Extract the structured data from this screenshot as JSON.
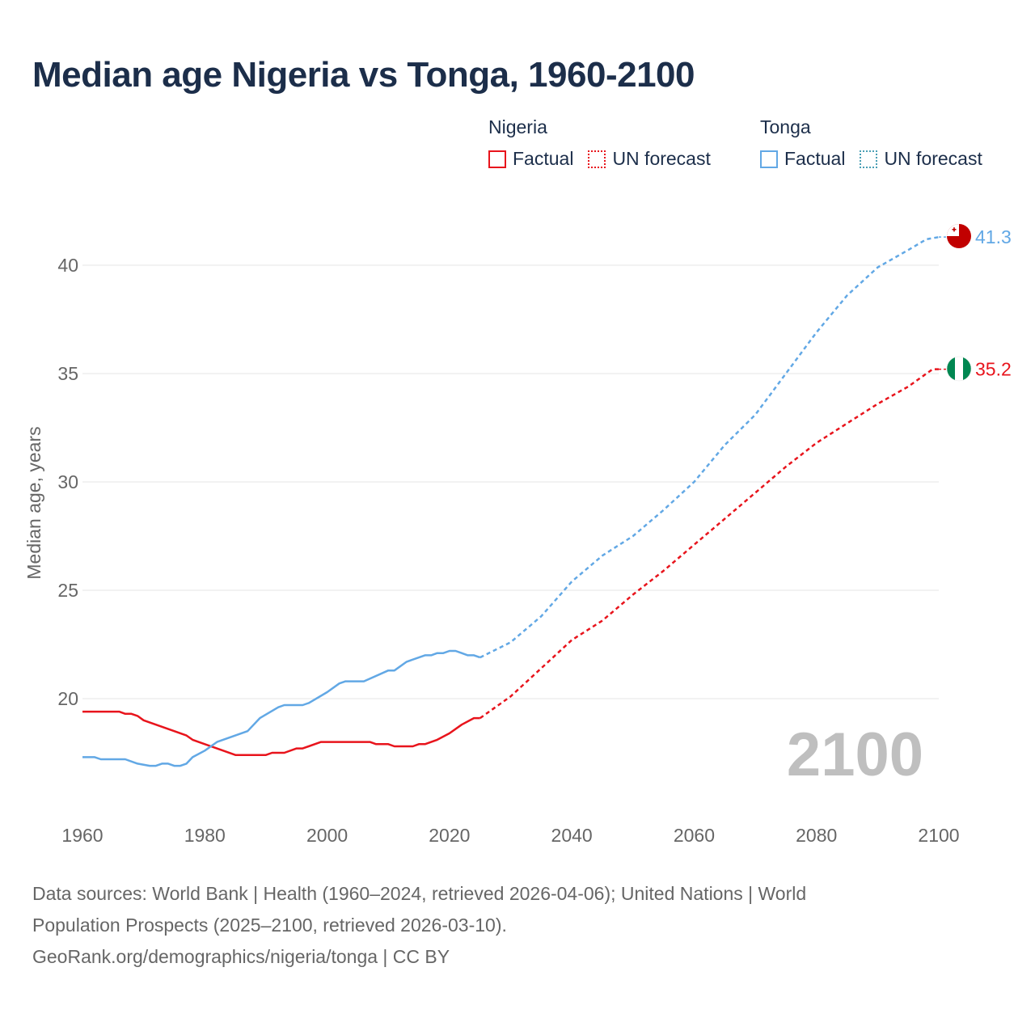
{
  "title": "Median age Nigeria vs Tonga, 1960-2100",
  "legend": {
    "groups": [
      {
        "name": "Nigeria",
        "factual": "Factual",
        "forecast": "UN forecast",
        "color": "#e8141c"
      },
      {
        "name": "Tonga",
        "factual": "Factual",
        "forecast": "UN forecast",
        "color": "#62a8e5",
        "forecast_color": "#4a9fb5"
      }
    ]
  },
  "year_label": "2100",
  "footer": {
    "line1": "Data sources: World Bank | Health (1960–2024, retrieved 2026-04-06); United Nations | World",
    "line2": "Population Prospects (2025–2100, retrieved 2026-03-10).",
    "line3": "GeoRank.org/demographics/nigeria/tonga | CC BY"
  },
  "chart_data": {
    "type": "line",
    "title": "Median age Nigeria vs Tonga, 1960-2100",
    "xlabel": "",
    "ylabel": "Median age, years",
    "xlim": [
      1960,
      2100
    ],
    "ylim": [
      16.5,
      43.5
    ],
    "yticks": [
      20,
      25,
      30,
      35,
      40
    ],
    "xticks": [
      1960,
      1980,
      2000,
      2020,
      2040,
      2060,
      2080,
      2100
    ],
    "grid": true,
    "forecast_start": 2025,
    "series": [
      {
        "name": "Nigeria",
        "color": "#e8141c",
        "end_label": "35.2",
        "points": [
          [
            1960,
            19.4
          ],
          [
            1966,
            19.4
          ],
          [
            1967,
            19.3
          ],
          [
            1968,
            19.3
          ],
          [
            1969,
            19.2
          ],
          [
            1970,
            19.0
          ],
          [
            1975,
            18.5
          ],
          [
            1977,
            18.3
          ],
          [
            1978,
            18.1
          ],
          [
            1980,
            17.9
          ],
          [
            1983,
            17.6
          ],
          [
            1985,
            17.4
          ],
          [
            1990,
            17.4
          ],
          [
            1991,
            17.5
          ],
          [
            1993,
            17.5
          ],
          [
            1995,
            17.7
          ],
          [
            1996,
            17.7
          ],
          [
            1999,
            18.0
          ],
          [
            2007,
            18.0
          ],
          [
            2008,
            17.9
          ],
          [
            2010,
            17.9
          ],
          [
            2011,
            17.8
          ],
          [
            2014,
            17.8
          ],
          [
            2015,
            17.9
          ],
          [
            2016,
            17.9
          ],
          [
            2018,
            18.1
          ],
          [
            2020,
            18.4
          ],
          [
            2022,
            18.8
          ],
          [
            2024,
            19.1
          ],
          [
            2025,
            19.1
          ],
          [
            2030,
            20.1
          ],
          [
            2035,
            21.4
          ],
          [
            2040,
            22.7
          ],
          [
            2045,
            23.6
          ],
          [
            2050,
            24.8
          ],
          [
            2055,
            25.9
          ],
          [
            2060,
            27.1
          ],
          [
            2065,
            28.3
          ],
          [
            2070,
            29.5
          ],
          [
            2075,
            30.7
          ],
          [
            2080,
            31.8
          ],
          [
            2085,
            32.7
          ],
          [
            2090,
            33.6
          ],
          [
            2095,
            34.4
          ],
          [
            2099,
            35.2
          ],
          [
            2100,
            35.2
          ]
        ]
      },
      {
        "name": "Tonga",
        "color": "#62a8e5",
        "end_label": "41.3",
        "points": [
          [
            1960,
            17.3
          ],
          [
            1962,
            17.3
          ],
          [
            1963,
            17.2
          ],
          [
            1967,
            17.2
          ],
          [
            1969,
            17.0
          ],
          [
            1971,
            16.9
          ],
          [
            1972,
            16.9
          ],
          [
            1973,
            17.0
          ],
          [
            1974,
            17.0
          ],
          [
            1975,
            16.9
          ],
          [
            1976,
            16.9
          ],
          [
            1977,
            17.0
          ],
          [
            1978,
            17.3
          ],
          [
            1980,
            17.6
          ],
          [
            1982,
            18.0
          ],
          [
            1987,
            18.5
          ],
          [
            1989,
            19.1
          ],
          [
            1992,
            19.6
          ],
          [
            1993,
            19.7
          ],
          [
            1996,
            19.7
          ],
          [
            1997,
            19.8
          ],
          [
            2000,
            20.3
          ],
          [
            2002,
            20.7
          ],
          [
            2003,
            20.8
          ],
          [
            2006,
            20.8
          ],
          [
            2010,
            21.3
          ],
          [
            2011,
            21.3
          ],
          [
            2013,
            21.7
          ],
          [
            2016,
            22.0
          ],
          [
            2017,
            22.0
          ],
          [
            2018,
            22.1
          ],
          [
            2019,
            22.1
          ],
          [
            2020,
            22.2
          ],
          [
            2021,
            22.2
          ],
          [
            2022,
            22.1
          ],
          [
            2023,
            22.0
          ],
          [
            2024,
            22.0
          ],
          [
            2025,
            21.9
          ],
          [
            2030,
            22.6
          ],
          [
            2035,
            23.8
          ],
          [
            2040,
            25.4
          ],
          [
            2045,
            26.6
          ],
          [
            2050,
            27.5
          ],
          [
            2055,
            28.7
          ],
          [
            2060,
            30.0
          ],
          [
            2065,
            31.7
          ],
          [
            2070,
            33.1
          ],
          [
            2075,
            35.0
          ],
          [
            2080,
            36.9
          ],
          [
            2085,
            38.6
          ],
          [
            2090,
            39.9
          ],
          [
            2095,
            40.7
          ],
          [
            2098,
            41.2
          ],
          [
            2100,
            41.3
          ]
        ]
      }
    ]
  }
}
